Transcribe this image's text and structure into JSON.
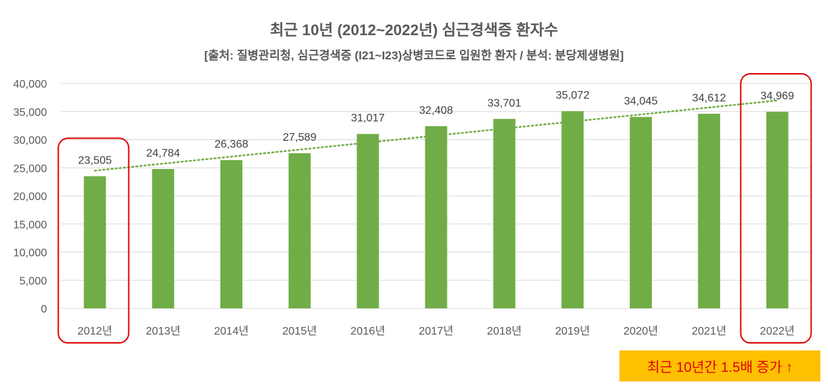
{
  "chart_data": {
    "type": "bar",
    "title": "최근 10년 (2012~2022년) 심근경색증 환자수",
    "subtitle": "[출처: 질병관리청, 심근경색증 (I21~I23)상병코드로 입원한 환자 / 분석: 분당제생병원]",
    "categories": [
      "2012년",
      "2013년",
      "2014년",
      "2015년",
      "2016년",
      "2017년",
      "2018년",
      "2019년",
      "2020년",
      "2021년",
      "2022년"
    ],
    "values": [
      23505,
      24784,
      26368,
      27589,
      31017,
      32408,
      33701,
      35072,
      34045,
      34612,
      34969
    ],
    "data_labels": [
      "23,505",
      "24,784",
      "26,368",
      "27,589",
      "31,017",
      "32,408",
      "33,701",
      "35,072",
      "34,045",
      "34,612",
      "34,969"
    ],
    "ylim": [
      0,
      40000
    ],
    "yticks": [
      0,
      5000,
      10000,
      15000,
      20000,
      25000,
      30000,
      35000,
      40000
    ],
    "ytick_labels": [
      "0",
      "5,000",
      "10,000",
      "15,000",
      "20,000",
      "25,000",
      "30,000",
      "35,000",
      "40,000"
    ],
    "grid": true,
    "trendline": "linear",
    "highlighted_categories": [
      "2012년",
      "2022년"
    ],
    "colors": {
      "bar": "#70AD47",
      "trendline": "#70AD47",
      "highlight_box": "#E00000",
      "grid": "#D9D9D9"
    }
  },
  "annotation": {
    "text": "최근 10년간 1.5배 증가 ↑",
    "background": "#FFC000",
    "color": "#E00000"
  }
}
